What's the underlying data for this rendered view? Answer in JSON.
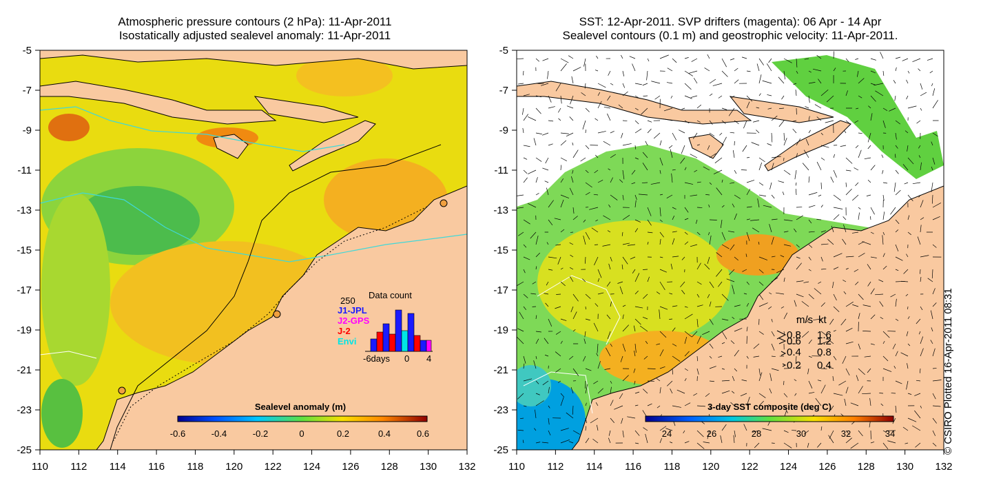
{
  "left_panel": {
    "title_line1": "Atmospheric pressure contours (2 hPa): 11-Apr-2011",
    "title_line2": "Isostatically adjusted sealevel anomaly: 11-Apr-2011",
    "colorbar_title": "Sealevel anomaly (m)",
    "colorbar_ticks": [
      "-0.6",
      "-0.4",
      "-0.2",
      "0",
      "0.2",
      "0.4",
      "0.6"
    ],
    "data_count": {
      "title": "Data count",
      "max_label": "250",
      "x_ticks": [
        "-6days",
        "0",
        "4"
      ],
      "legend": [
        {
          "label": "J1-JPL",
          "color": "#1a1aff"
        },
        {
          "label": "J2-GPS",
          "color": "#ff00ff"
        },
        {
          "label": "J-2",
          "color": "#ff0000"
        },
        {
          "label": "Envi",
          "color": "#00e5e5"
        }
      ]
    }
  },
  "right_panel": {
    "title_line1": "SST: 12-Apr-2011. SVP drifters (magenta): 06 Apr - 14 Apr",
    "title_line2": "Sealevel contours (0.1 m) and geostrophic velocity: 11-Apr-2011.",
    "colorbar_title": "3-day SST composite (deg C)",
    "colorbar_ticks": [
      "24",
      "26",
      "28",
      "30",
      "32",
      "34"
    ],
    "velocity_legend": {
      "header_ms": "m/s",
      "header_kt": "kt",
      "rows": [
        {
          "ms": "0.8",
          "kt": "1.6"
        },
        {
          "ms": "0.6",
          "kt": "1.2"
        },
        {
          "ms": "0.4",
          "kt": "0.8"
        },
        {
          "ms": "0.2",
          "kt": "0.4"
        }
      ]
    }
  },
  "axes": {
    "x_ticks": [
      "110",
      "112",
      "114",
      "116",
      "118",
      "120",
      "122",
      "124",
      "126",
      "128",
      "130",
      "132"
    ],
    "y_ticks": [
      "-5",
      "-7",
      "-9",
      "-11",
      "-13",
      "-15",
      "-17",
      "-19",
      "-21",
      "-23",
      "-25"
    ]
  },
  "credit": "© CSIRO Plotted 16-Apr-2011 08:31",
  "colors": {
    "land": "#f9c9a0",
    "anomaly_background": "#f0d000",
    "sst_background": "#7ed957"
  }
}
